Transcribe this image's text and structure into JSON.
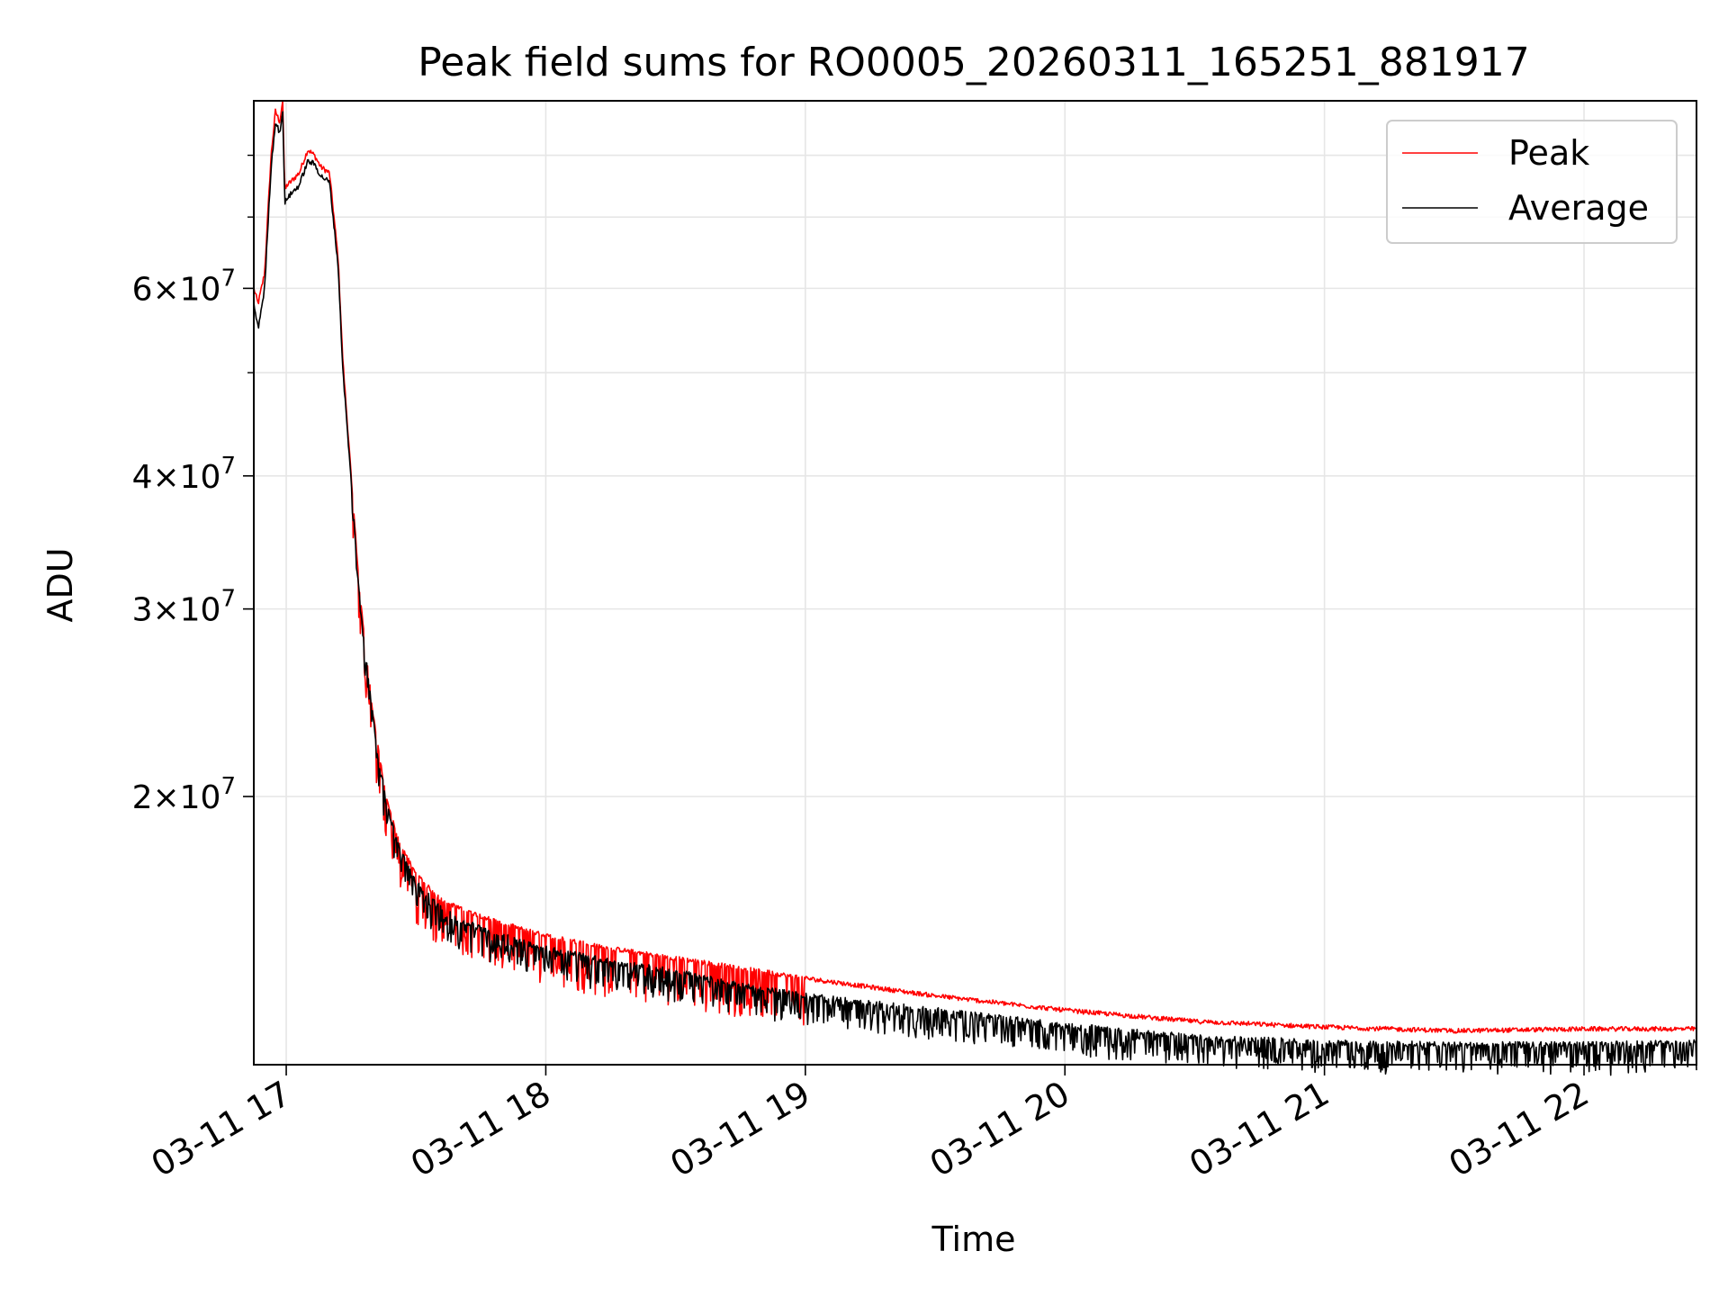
{
  "chart_data": {
    "type": "line",
    "title": "Peak field sums for RO0005_20260311_165251_881917",
    "xlabel": "Time",
    "ylabel": "ADU",
    "y_scale": "log",
    "ylim": [
      11200000,
      90000000
    ],
    "xlim": [
      "2026-03-11 16:52:30",
      "2026-03-11 22:26:00"
    ],
    "grid": true,
    "legend_position": "top-right",
    "x_ticks": [
      {
        "value": "2026-03-11 17:00",
        "label": "03-11 17"
      },
      {
        "value": "2026-03-11 18:00",
        "label": "03-11 18"
      },
      {
        "value": "2026-03-11 19:00",
        "label": "03-11 19"
      },
      {
        "value": "2026-03-11 20:00",
        "label": "03-11 20"
      },
      {
        "value": "2026-03-11 21:00",
        "label": "03-11 21"
      },
      {
        "value": "2026-03-11 22:00",
        "label": "03-11 22"
      }
    ],
    "y_ticks": [
      {
        "value": 20000000,
        "mantissa": "2",
        "exponent": "7"
      },
      {
        "value": 30000000,
        "mantissa": "3",
        "exponent": "7"
      },
      {
        "value": 40000000,
        "mantissa": "4",
        "exponent": "7"
      },
      {
        "value": 60000000,
        "mantissa": "6",
        "exponent": "7"
      }
    ],
    "y_minor_ticks": [
      50000000,
      70000000,
      80000000
    ],
    "series": [
      {
        "name": "Peak",
        "color": "#ff0000",
        "x": [
          "2026-03-11 16:52:30",
          "2026-03-11 16:53:30",
          "2026-03-11 16:55:00",
          "2026-03-11 16:56:30",
          "2026-03-11 16:57:30",
          "2026-03-11 16:58:30",
          "2026-03-11 16:59:10",
          "2026-03-11 16:59:40",
          "2026-03-11 17:00:10",
          "2026-03-11 17:01:00",
          "2026-03-11 17:03:00",
          "2026-03-11 17:05:00",
          "2026-03-11 17:06:30",
          "2026-03-11 17:08:00",
          "2026-03-11 17:10:00",
          "2026-03-11 17:12:00",
          "2026-03-11 17:13:00",
          "2026-03-11 17:15:00",
          "2026-03-11 17:17:00",
          "2026-03-11 17:20:00",
          "2026-03-11 17:23:00",
          "2026-03-11 17:26:00",
          "2026-03-11 17:30:00",
          "2026-03-11 17:35:00",
          "2026-03-11 17:40:00",
          "2026-03-11 17:50:00",
          "2026-03-11 18:00:00",
          "2026-03-11 18:15:00",
          "2026-03-11 18:30:00",
          "2026-03-11 18:45:00",
          "2026-03-11 19:00:00",
          "2026-03-11 19:30:00",
          "2026-03-11 20:00:00",
          "2026-03-11 20:30:00",
          "2026-03-11 21:00:00",
          "2026-03-11 21:30:00",
          "2026-03-11 22:00:00",
          "2026-03-11 22:26:00"
        ],
        "values": [
          60000000,
          58000000,
          62000000,
          80000000,
          88000000,
          86000000,
          90000000,
          74000000,
          75000000,
          75500000,
          77000000,
          81000000,
          80000000,
          78000000,
          77000000,
          64000000,
          52000000,
          40000000,
          31000000,
          24000000,
          20000000,
          18200000,
          16900000,
          16100000,
          15700000,
          15200000,
          14800000,
          14400000,
          14100000,
          13800000,
          13500000,
          13000000,
          12600000,
          12300000,
          12150000,
          12050000,
          12100000,
          12100000
        ]
      },
      {
        "name": "Average",
        "color": "#000000",
        "x": [
          "2026-03-11 16:52:30",
          "2026-03-11 16:53:30",
          "2026-03-11 16:55:00",
          "2026-03-11 16:56:30",
          "2026-03-11 16:57:30",
          "2026-03-11 16:58:30",
          "2026-03-11 16:59:10",
          "2026-03-11 16:59:40",
          "2026-03-11 17:00:10",
          "2026-03-11 17:01:00",
          "2026-03-11 17:03:00",
          "2026-03-11 17:05:00",
          "2026-03-11 17:06:30",
          "2026-03-11 17:08:00",
          "2026-03-11 17:10:00",
          "2026-03-11 17:12:00",
          "2026-03-11 17:13:00",
          "2026-03-11 17:15:00",
          "2026-03-11 17:17:00",
          "2026-03-11 17:20:00",
          "2026-03-11 17:23:00",
          "2026-03-11 17:26:00",
          "2026-03-11 17:30:00",
          "2026-03-11 17:35:00",
          "2026-03-11 17:40:00",
          "2026-03-11 17:50:00",
          "2026-03-11 18:00:00",
          "2026-03-11 18:15:00",
          "2026-03-11 18:30:00",
          "2026-03-11 18:45:00",
          "2026-03-11 19:00:00",
          "2026-03-11 19:30:00",
          "2026-03-11 20:00:00",
          "2026-03-11 20:30:00",
          "2026-03-11 21:00:00",
          "2026-03-11 21:30:00",
          "2026-03-11 22:00:00",
          "2026-03-11 22:26:00"
        ],
        "values": [
          58000000,
          55000000,
          60000000,
          78000000,
          86000000,
          84000000,
          88000000,
          72000000,
          73000000,
          73500000,
          75000000,
          79000000,
          78500000,
          76500000,
          75500000,
          63000000,
          51000000,
          39500000,
          30500000,
          23800000,
          19800000,
          17900000,
          16600000,
          15800000,
          15300000,
          14800000,
          14400000,
          14000000,
          13700000,
          13300000,
          13000000,
          12600000,
          12200000,
          11900000,
          11750000,
          11700000,
          11700000,
          11750000
        ]
      }
    ]
  }
}
